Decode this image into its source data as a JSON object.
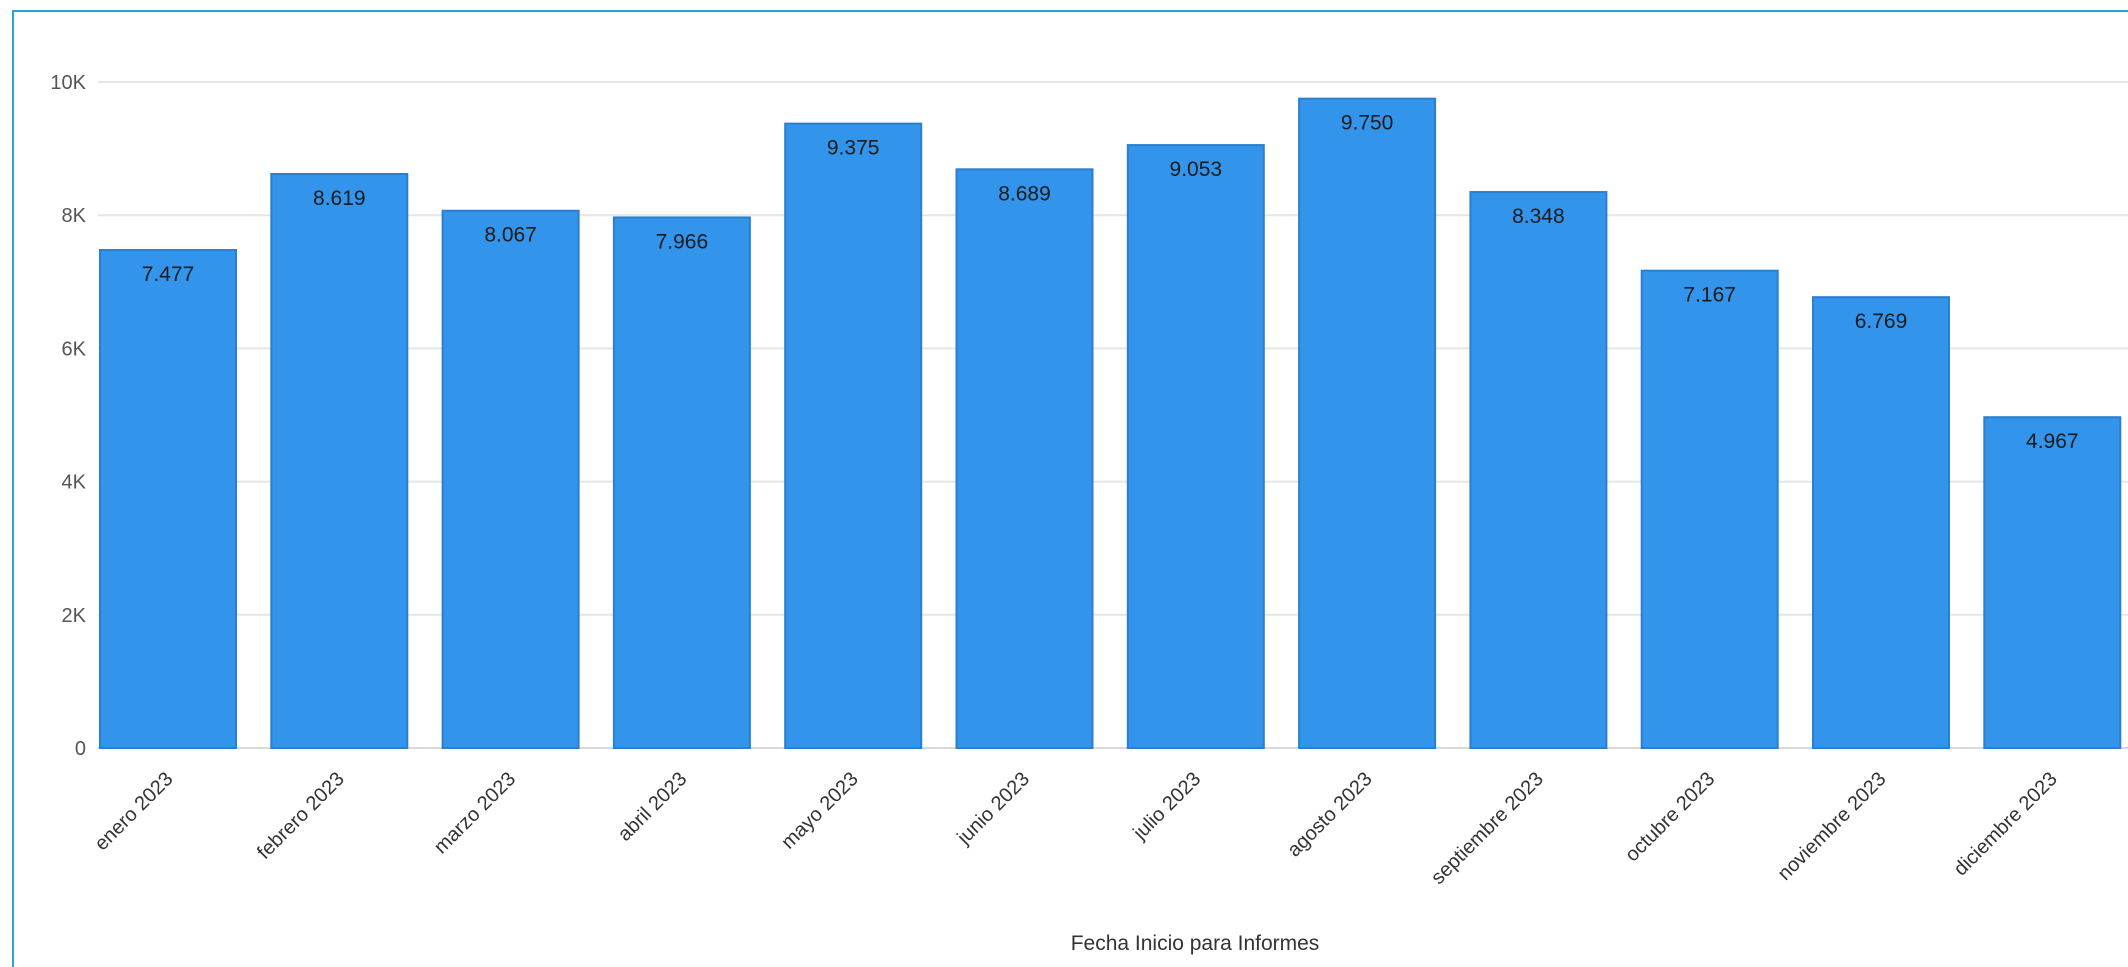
{
  "chart_data": {
    "type": "bar",
    "categories": [
      "enero 2023",
      "febrero 2023",
      "marzo 2023",
      "abril 2023",
      "mayo 2023",
      "junio 2023",
      "julio 2023",
      "agosto 2023",
      "septiembre 2023",
      "octubre 2023",
      "noviembre 2023",
      "diciembre 2023"
    ],
    "values": [
      7477,
      8619,
      8067,
      7966,
      9375,
      8689,
      9053,
      9750,
      8348,
      7167,
      6769,
      4967
    ],
    "value_labels": [
      "7.477",
      "8.619",
      "8.067",
      "7.966",
      "9.375",
      "8.689",
      "9.053",
      "9.750",
      "8.348",
      "7.167",
      "6.769",
      "4.967"
    ],
    "xlabel": "Fecha Inicio para Informes",
    "ylim": [
      0,
      10000
    ],
    "yticks": [
      0,
      2000,
      4000,
      6000,
      8000,
      10000
    ],
    "ytick_labels": [
      "0",
      "2K",
      "4K",
      "6K",
      "8K",
      "10K"
    ],
    "grid": true,
    "bar_color": "#3294ea",
    "bar_edge_color": "#2a7fd0"
  }
}
